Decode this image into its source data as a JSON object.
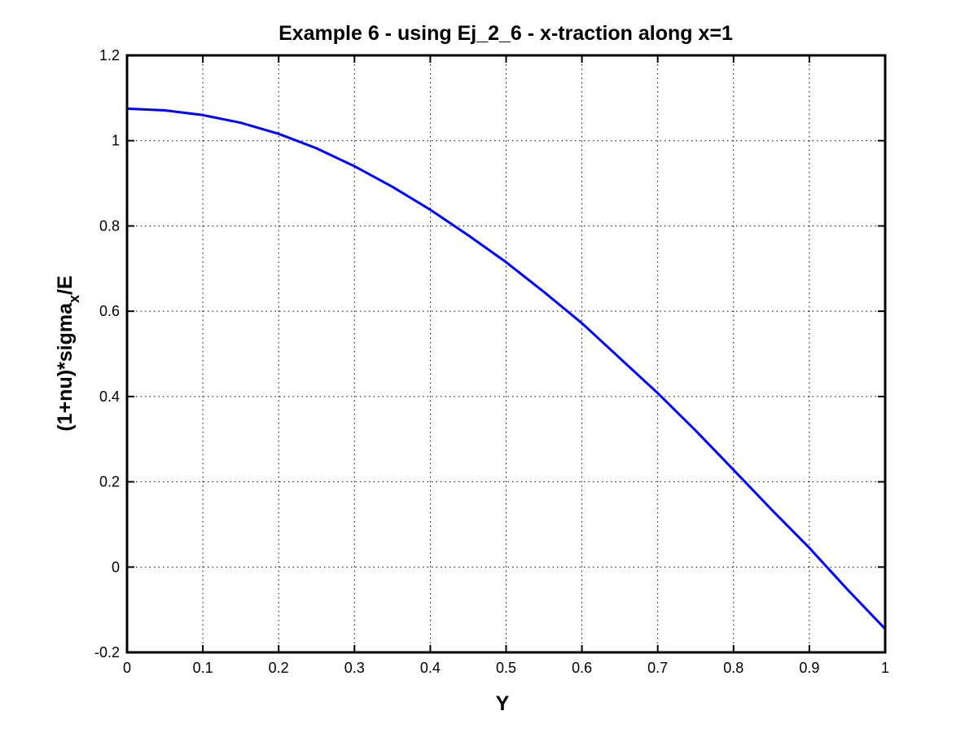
{
  "chart_data": {
    "type": "line",
    "title": "Example 6 - using Ej_2_6 - x-traction along x=1",
    "xlabel": "Y",
    "ylabel": {
      "text_main": "(1+nu)*sigma",
      "subscript": "x",
      "text_tail": "/E"
    },
    "xlim": [
      0,
      1
    ],
    "ylim": [
      -0.2,
      1.2
    ],
    "xticks": [
      0,
      0.1,
      0.2,
      0.3,
      0.4,
      0.5,
      0.6,
      0.7,
      0.8,
      0.9,
      1
    ],
    "xtick_labels": [
      "0",
      "0.1",
      "0.2",
      "0.3",
      "0.4",
      "0.5",
      "0.6",
      "0.7",
      "0.8",
      "0.9",
      "1"
    ],
    "yticks": [
      -0.2,
      0,
      0.2,
      0.4,
      0.6,
      0.8,
      1,
      1.2
    ],
    "ytick_labels": [
      "-0.2",
      "0",
      "0.2",
      "0.4",
      "0.6",
      "0.8",
      "1",
      "1.2"
    ],
    "grid": true,
    "series": [
      {
        "color": "#0000ff",
        "x": [
          0,
          0.05,
          0.1,
          0.15,
          0.2,
          0.25,
          0.3,
          0.35,
          0.4,
          0.45,
          0.5,
          0.55,
          0.6,
          0.65,
          0.7,
          0.75,
          0.8,
          0.85,
          0.9,
          0.95,
          1.0
        ],
        "y": [
          1.075,
          1.071,
          1.06,
          1.042,
          1.016,
          0.982,
          0.94,
          0.892,
          0.838,
          0.778,
          0.715,
          0.645,
          0.572,
          0.49,
          0.408,
          0.32,
          0.228,
          0.135,
          0.045,
          -0.052,
          -0.145
        ]
      }
    ]
  }
}
